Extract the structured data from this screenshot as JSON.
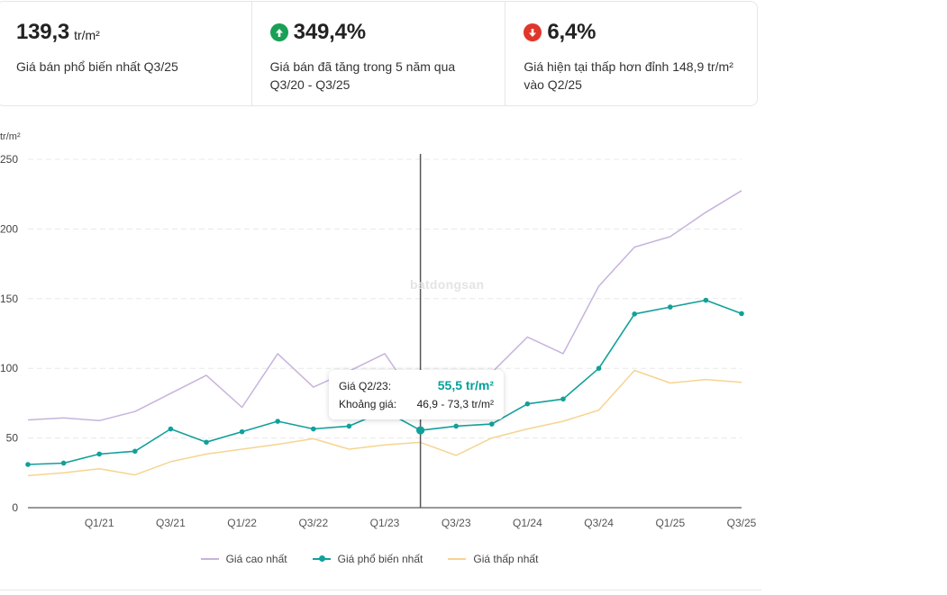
{
  "stats": [
    {
      "value": "139,3",
      "unit": "tr/m²",
      "desc": "Giá bán phổ biến nhất Q3/25",
      "desc2": ""
    },
    {
      "value": "349,4%",
      "icon": "arrow-up-icon",
      "icon_color": "#19a055",
      "desc": "Giá bán đã tăng trong 5 năm qua",
      "desc2": "Q3/20 - Q3/25"
    },
    {
      "value": "6,4%",
      "icon": "arrow-down-icon",
      "icon_color": "#e0372b",
      "desc": "Giá hiện tại thấp hơn đỉnh 148,9 tr/m²",
      "desc2": "vào Q2/25"
    }
  ],
  "tooltip": {
    "price_label": "Giá Q2/23:",
    "price_value": "55,5 tr/m²",
    "range_label": "Khoảng giá:",
    "range_value": "46,9 - 73,3 tr/m²"
  },
  "watermark": "batdongsan",
  "chart_data": {
    "type": "line",
    "y_unit": "tr/m²",
    "ylim": [
      0,
      250
    ],
    "y_ticks": [
      0,
      50,
      100,
      150,
      200,
      250
    ],
    "x": [
      "Q3/20",
      "Q4/20",
      "Q1/21",
      "Q2/21",
      "Q3/21",
      "Q4/21",
      "Q1/22",
      "Q2/22",
      "Q3/22",
      "Q4/22",
      "Q1/23",
      "Q2/23",
      "Q3/23",
      "Q4/23",
      "Q1/24",
      "Q2/24",
      "Q3/24",
      "Q4/24",
      "Q1/25",
      "Q2/25",
      "Q3/25"
    ],
    "x_tick_labels": [
      "Q1/21",
      "Q3/21",
      "Q1/22",
      "Q3/22",
      "Q1/23",
      "Q3/23",
      "Q1/24",
      "Q3/24",
      "Q1/25",
      "Q3/25"
    ],
    "highlight": "Q2/23",
    "grid": true,
    "legend_position": "bottom",
    "series": [
      {
        "name": "Giá cao nhất",
        "color": "#c7b3dd",
        "markers": false,
        "values": [
          63,
          64.5,
          62.5,
          69,
          82,
          95,
          72,
          110.5,
          86.5,
          98,
          110.5,
          73.3,
          86,
          97,
          122.5,
          110.5,
          159,
          187,
          194.5,
          212,
          227.5
        ]
      },
      {
        "name": "Giá phổ biến nhất",
        "color": "#12a09a",
        "markers": true,
        "values": [
          31,
          32,
          38.5,
          40.5,
          56.5,
          47,
          54.5,
          62,
          56.5,
          58.5,
          69.5,
          55.5,
          58.5,
          60,
          74.5,
          78,
          100,
          139,
          144,
          148.9,
          139.3
        ]
      },
      {
        "name": "Giá thấp nhất",
        "color": "#f6d490",
        "markers": false,
        "values": [
          23,
          25,
          28,
          23.5,
          33,
          38.5,
          42,
          45.5,
          49.5,
          42,
          45,
          46.9,
          37.5,
          50,
          56.5,
          62,
          70,
          98.5,
          89.5,
          92,
          90
        ]
      }
    ]
  }
}
